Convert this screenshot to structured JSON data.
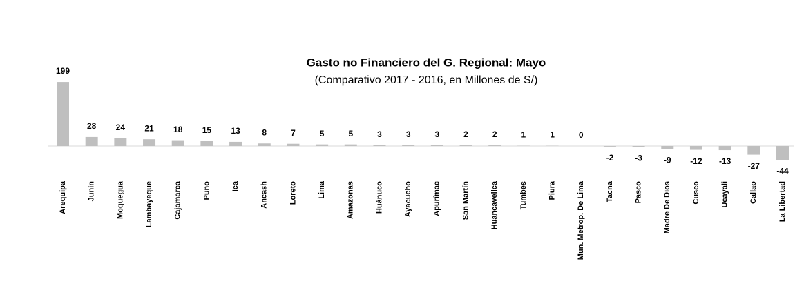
{
  "chart_data": {
    "type": "bar",
    "title": "Gasto no Financiero del G. Regional: Mayo",
    "subtitle": "(Comparativo 2017 - 2016, en Millones de S/)",
    "categories": [
      "Arequipa",
      "Junín",
      "Moquegua",
      "Lambayeque",
      "Cajamarca",
      "Puno",
      "Ica",
      "Ancash",
      "Loreto",
      "Lima",
      "Amazonas",
      "Huánuco",
      "Ayacucho",
      "Apurímac",
      "San Martín",
      "Huancavelica",
      "Tumbes",
      "Piura",
      "Mun. Metrop. De Lima",
      "Tacna",
      "Pasco",
      "Madre De Dios",
      "Cusco",
      "Ucayali",
      "Callao",
      "La Libertad"
    ],
    "values": [
      199,
      28,
      24,
      21,
      18,
      15,
      13,
      8,
      7,
      5,
      5,
      3,
      3,
      3,
      2,
      2,
      1,
      1,
      0,
      -2,
      -3,
      -9,
      -12,
      -13,
      -27,
      -44
    ],
    "color": "#bfbfbf",
    "ylim": [
      -60,
      230
    ]
  }
}
